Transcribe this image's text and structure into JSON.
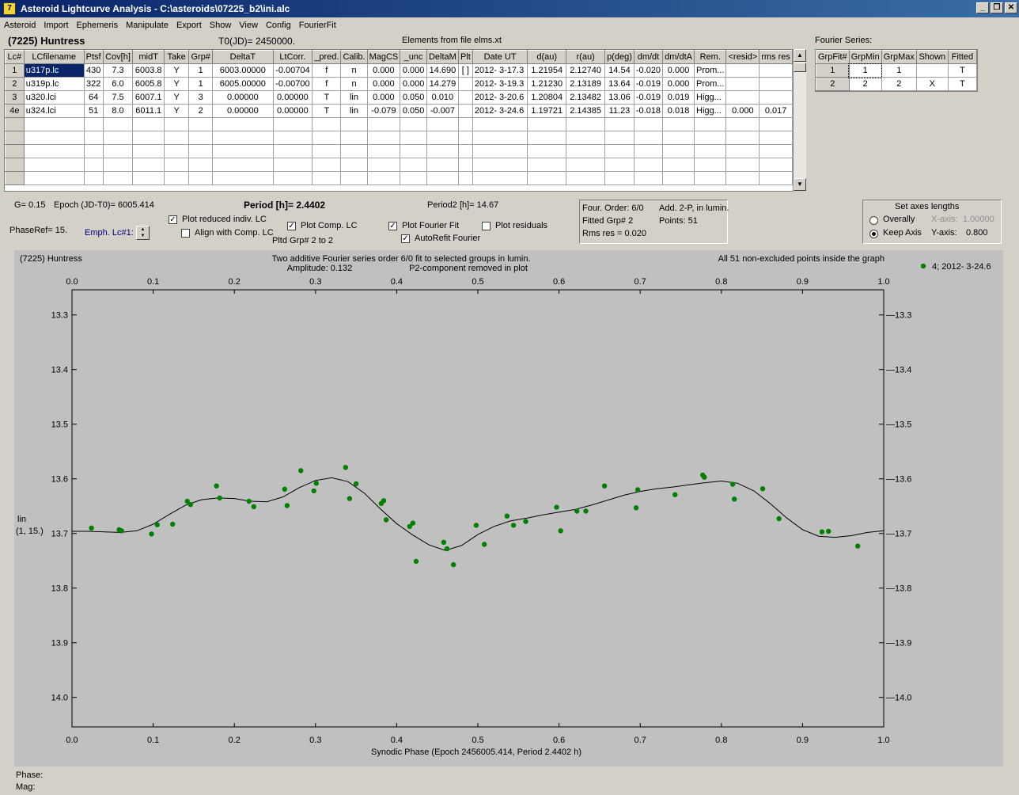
{
  "window": {
    "title": "Asteroid Lightcurve Analysis - C:\\asteroids\\07225_b2\\ini.alc",
    "icon": "app-logo-icon"
  },
  "menu": [
    "Asteroid",
    "Import",
    "Ephemeris",
    "Manipulate",
    "Export",
    "Show",
    "View",
    "Config",
    "FourierFit"
  ],
  "header": {
    "asteroid": "(7225) Huntress",
    "t0": "T0(JD)= 2450000.",
    "elements": "Elements from file elms.xt"
  },
  "lc_table": {
    "columns": [
      "Lc#",
      "LCfilename",
      "Ptsf",
      "Cov[h]",
      "midT",
      "Take",
      "Grp#",
      "DeltaT",
      "LtCorr.",
      "_pred.",
      "Calib.",
      "MagCS",
      "_unc",
      "DeltaM",
      "Plt",
      "Date UT",
      "d(au)",
      "r(au)",
      "p(deg)",
      "dm/dt",
      "dm/dtA",
      "Rem.",
      "<resid>",
      "rms res"
    ],
    "rows": [
      [
        "1",
        "u317p.lc",
        "430",
        "7.3",
        "6003.8",
        "Y",
        "1",
        "6003.00000",
        "-0.00704",
        "f",
        "n",
        "0.000",
        "0.000",
        "14.690",
        "[ ]",
        "2012- 3-17.3",
        "1.21954",
        "2.12740",
        "14.54",
        "-0.020",
        "0.000",
        "Prom...",
        "",
        ""
      ],
      [
        "2",
        "u319p.lc",
        "322",
        "6.0",
        "6005.8",
        "Y",
        "1",
        "6005.00000",
        "-0.00700",
        "f",
        "n",
        "0.000",
        "0.000",
        "14.279",
        "",
        "2012- 3-19.3",
        "1.21230",
        "2.13189",
        "13.64",
        "-0.019",
        "0.000",
        "Prom...",
        "",
        ""
      ],
      [
        "3",
        "u320.lci",
        "64",
        "7.5",
        "6007.1",
        "Y",
        "3",
        "0.00000",
        "0.00000",
        "T",
        "lin",
        "0.000",
        "0.050",
        "0.010",
        "",
        "2012- 3-20.6",
        "1.20804",
        "2.13482",
        "13.06",
        "-0.019",
        "0.019",
        "Higg...",
        "",
        ""
      ],
      [
        "4e",
        "u324.lci",
        "51",
        "8.0",
        "6011.1",
        "Y",
        "2",
        "0.00000",
        "0.00000",
        "T",
        "lin",
        "-0.079",
        "0.050",
        "-0.007",
        "",
        "2012- 3-24.6",
        "1.19721",
        "2.14385",
        "11.23",
        "-0.018",
        "0.018",
        "Higg...",
        "0.000",
        "0.017"
      ]
    ],
    "empty_rows": 5
  },
  "fourier_series": {
    "title": "Fourier Series:",
    "columns": [
      "GrpFit#",
      "GrpMin",
      "GrpMax",
      "Shown",
      "Fitted"
    ],
    "rows": [
      [
        "1",
        "1",
        "1",
        "",
        "T"
      ],
      [
        "2",
        "2",
        "2",
        "X",
        "T"
      ]
    ]
  },
  "params": {
    "g": "G= 0.15",
    "epoch": "Epoch (JD-T0)= 6005.414",
    "period": "Period [h]= 2.4402",
    "period2": "Period2 [h]= 14.67",
    "phaseref": "PhaseRef= 15.",
    "emph": "Emph. Lc#1:",
    "pltd_grp": "Pltd Grp#  2   to   2"
  },
  "checkboxes": [
    {
      "label": "Plot reduced indiv. LC",
      "checked": true
    },
    {
      "label": "Align with Comp. LC",
      "checked": false
    },
    {
      "label": "Plot Comp. LC",
      "checked": true
    },
    {
      "label": "Plot Fourier Fit",
      "checked": true
    },
    {
      "label": "AutoRefit Fourier",
      "checked": true
    },
    {
      "label": "Plot residuals",
      "checked": false
    }
  ],
  "fit_info": {
    "order": "Four. Order:  6/0",
    "add": "Add. 2-P, in lumin.",
    "fitted": "Fitted Grp# 2",
    "points": "Points: 51",
    "rms": "Rms res     = 0.020"
  },
  "axes_box": {
    "title": "Set axes lengths",
    "overally": "Overally",
    "keep": "Keep Axis",
    "selected": "keep",
    "x_label": "X-axis:",
    "x_value": "1.00000",
    "y_label": "Y-axis:",
    "y_value": "0.800"
  },
  "plot": {
    "name": "(7225) Huntress",
    "desc1": "Two additive Fourier series order 6/0 fit to selected groups in lumin.",
    "amplitude": "Amplitude: 0.132",
    "p2note": "P2-component removed in plot",
    "inside": "All 51 non-excluded points inside the graph",
    "legend": "4; 2012- 3-24.6",
    "ylabel_mode": "lin",
    "ylabel_ref": "(1, 15.)",
    "point_color": "#008000"
  },
  "status": {
    "phase": "Phase:",
    "mag": "Mag:"
  },
  "chart_data": {
    "type": "scatter",
    "xlabel": "Synodic Phase (Epoch 2456005.414, Period 2.4402 h)",
    "x_ticks": [
      "0.0",
      "0.1",
      "0.2",
      "0.3",
      "0.4",
      "0.5",
      "0.6",
      "0.7",
      "0.8",
      "0.9",
      "1.0"
    ],
    "y_ticks": [
      "13.3",
      "13.4",
      "13.5",
      "13.6",
      "13.7",
      "13.8",
      "13.9",
      "14.0"
    ],
    "xlim": [
      0.0,
      1.0
    ],
    "ylim": [
      13.254,
      14.054
    ],
    "y_inverted": true,
    "series": [
      {
        "name": "4; 2012- 3-24.6",
        "points": [
          [
            0.024,
            13.69
          ],
          [
            0.058,
            13.693
          ],
          [
            0.061,
            13.695
          ],
          [
            0.098,
            13.701
          ],
          [
            0.105,
            13.684
          ],
          [
            0.124,
            13.683
          ],
          [
            0.142,
            13.641
          ],
          [
            0.146,
            13.647
          ],
          [
            0.178,
            13.613
          ],
          [
            0.182,
            13.635
          ],
          [
            0.218,
            13.641
          ],
          [
            0.224,
            13.651
          ],
          [
            0.262,
            13.619
          ],
          [
            0.265,
            13.649
          ],
          [
            0.282,
            13.585
          ],
          [
            0.298,
            13.622
          ],
          [
            0.301,
            13.608
          ],
          [
            0.337,
            13.579
          ],
          [
            0.342,
            13.636
          ],
          [
            0.35,
            13.609
          ],
          [
            0.381,
            13.645
          ],
          [
            0.384,
            13.64
          ],
          [
            0.387,
            13.675
          ],
          [
            0.416,
            13.687
          ],
          [
            0.42,
            13.681
          ],
          [
            0.424,
            13.751
          ],
          [
            0.458,
            13.716
          ],
          [
            0.462,
            13.728
          ],
          [
            0.47,
            13.757
          ],
          [
            0.498,
            13.685
          ],
          [
            0.508,
            13.72
          ],
          [
            0.536,
            13.668
          ],
          [
            0.544,
            13.685
          ],
          [
            0.559,
            13.678
          ],
          [
            0.597,
            13.652
          ],
          [
            0.602,
            13.695
          ],
          [
            0.622,
            13.659
          ],
          [
            0.633,
            13.659
          ],
          [
            0.656,
            13.613
          ],
          [
            0.695,
            13.653
          ],
          [
            0.697,
            13.62
          ],
          [
            0.743,
            13.629
          ],
          [
            0.777,
            13.593
          ],
          [
            0.779,
            13.597
          ],
          [
            0.814,
            13.61
          ],
          [
            0.816,
            13.637
          ],
          [
            0.851,
            13.618
          ],
          [
            0.871,
            13.673
          ],
          [
            0.924,
            13.697
          ],
          [
            0.932,
            13.696
          ],
          [
            0.968,
            13.723
          ]
        ]
      },
      {
        "name": "",
        "type": "line",
        "points": [
          [
            0.0,
            13.696
          ],
          [
            0.02,
            13.696
          ],
          [
            0.04,
            13.697
          ],
          [
            0.06,
            13.698
          ],
          [
            0.08,
            13.695
          ],
          [
            0.1,
            13.683
          ],
          [
            0.12,
            13.665
          ],
          [
            0.14,
            13.648
          ],
          [
            0.16,
            13.638
          ],
          [
            0.18,
            13.635
          ],
          [
            0.2,
            13.636
          ],
          [
            0.22,
            13.641
          ],
          [
            0.24,
            13.642
          ],
          [
            0.26,
            13.633
          ],
          [
            0.28,
            13.616
          ],
          [
            0.3,
            13.603
          ],
          [
            0.32,
            13.598
          ],
          [
            0.34,
            13.605
          ],
          [
            0.36,
            13.626
          ],
          [
            0.38,
            13.655
          ],
          [
            0.4,
            13.682
          ],
          [
            0.42,
            13.703
          ],
          [
            0.44,
            13.721
          ],
          [
            0.46,
            13.731
          ],
          [
            0.48,
            13.722
          ],
          [
            0.5,
            13.702
          ],
          [
            0.52,
            13.687
          ],
          [
            0.54,
            13.677
          ],
          [
            0.56,
            13.672
          ],
          [
            0.58,
            13.666
          ],
          [
            0.6,
            13.661
          ],
          [
            0.62,
            13.656
          ],
          [
            0.64,
            13.648
          ],
          [
            0.66,
            13.639
          ],
          [
            0.68,
            13.63
          ],
          [
            0.7,
            13.623
          ],
          [
            0.72,
            13.618
          ],
          [
            0.74,
            13.615
          ],
          [
            0.76,
            13.611
          ],
          [
            0.78,
            13.607
          ],
          [
            0.8,
            13.604
          ],
          [
            0.82,
            13.608
          ],
          [
            0.84,
            13.622
          ],
          [
            0.86,
            13.645
          ],
          [
            0.88,
            13.671
          ],
          [
            0.9,
            13.693
          ],
          [
            0.92,
            13.705
          ],
          [
            0.94,
            13.707
          ],
          [
            0.96,
            13.704
          ],
          [
            0.98,
            13.698
          ],
          [
            1.0,
            13.695
          ]
        ]
      }
    ]
  }
}
